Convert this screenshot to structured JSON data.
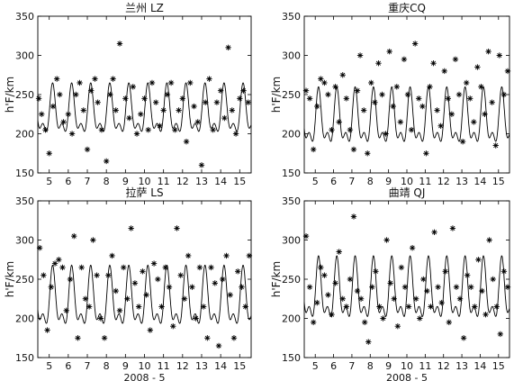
{
  "chart_data": [
    {
      "type": "line",
      "title": "兰州 LZ",
      "ylabel": "h'F/km",
      "xlabel": "",
      "xlim": [
        4.4,
        15.6
      ],
      "ylim": [
        150,
        350
      ],
      "xticks": [
        5,
        6,
        7,
        8,
        9,
        10,
        11,
        12,
        13,
        14,
        15
      ],
      "yticks": [
        150,
        200,
        250,
        300,
        350
      ],
      "series": [
        {
          "style": "line",
          "shape": "diurnal",
          "base": 225,
          "amp": 40,
          "min": 180,
          "max": 265
        },
        {
          "style": "markers",
          "x": [
            4.45,
            4.6,
            4.8,
            5.0,
            5.2,
            5.4,
            5.55,
            5.75,
            6.0,
            6.2,
            6.4,
            6.6,
            6.8,
            7.0,
            7.2,
            7.4,
            7.55,
            7.75,
            8.0,
            8.2,
            8.35,
            8.5,
            8.7,
            9.0,
            9.2,
            9.4,
            9.6,
            9.8,
            10.0,
            10.2,
            10.4,
            10.6,
            10.8,
            11.0,
            11.2,
            11.4,
            11.6,
            11.8,
            12.0,
            12.2,
            12.4,
            12.6,
            12.8,
            13.0,
            13.2,
            13.4,
            13.6,
            13.8,
            14.0,
            14.2,
            14.4,
            14.6,
            14.8,
            15.0,
            15.2,
            15.45
          ],
          "y": [
            245,
            225,
            205,
            175,
            235,
            270,
            250,
            215,
            225,
            200,
            250,
            265,
            230,
            180,
            255,
            270,
            240,
            205,
            165,
            250,
            270,
            230,
            315,
            245,
            220,
            260,
            200,
            225,
            245,
            205,
            265,
            240,
            210,
            230,
            250,
            265,
            205,
            230,
            245,
            190,
            265,
            235,
            215,
            160,
            240,
            270,
            205,
            240,
            255,
            220,
            310,
            230,
            200,
            245,
            255,
            240
          ]
        }
      ]
    },
    {
      "type": "line",
      "title": "重庆CQ",
      "ylabel": "h'F/km",
      "xlabel": "",
      "xlim": [
        4.4,
        15.6
      ],
      "ylim": [
        150,
        350
      ],
      "xticks": [
        5,
        6,
        7,
        8,
        9,
        10,
        11,
        12,
        13,
        14,
        15
      ],
      "yticks": [
        150,
        200,
        250,
        300,
        350
      ],
      "series": [
        {
          "style": "line",
          "shape": "diurnal",
          "base": 215,
          "amp": 45,
          "min": 165,
          "max": 265
        },
        {
          "style": "markers",
          "x": [
            4.5,
            4.7,
            4.9,
            5.1,
            5.3,
            5.5,
            5.7,
            5.9,
            6.1,
            6.3,
            6.5,
            6.7,
            6.9,
            7.1,
            7.3,
            7.45,
            7.65,
            7.85,
            8.05,
            8.25,
            8.45,
            8.65,
            8.85,
            9.05,
            9.25,
            9.45,
            9.65,
            9.85,
            10.05,
            10.25,
            10.45,
            10.65,
            10.85,
            11.05,
            11.25,
            11.45,
            11.65,
            11.85,
            12.05,
            12.25,
            12.45,
            12.65,
            12.85,
            13.05,
            13.25,
            13.45,
            13.65,
            13.85,
            14.05,
            14.25,
            14.45,
            14.65,
            14.85,
            15.05,
            15.3,
            15.5
          ],
          "y": [
            255,
            245,
            180,
            235,
            270,
            265,
            250,
            205,
            260,
            215,
            275,
            245,
            205,
            180,
            255,
            300,
            230,
            175,
            265,
            240,
            290,
            250,
            200,
            305,
            235,
            260,
            215,
            295,
            250,
            205,
            315,
            245,
            235,
            175,
            260,
            290,
            230,
            210,
            280,
            245,
            225,
            295,
            250,
            190,
            265,
            245,
            215,
            285,
            260,
            225,
            305,
            240,
            185,
            300,
            250,
            280
          ]
        }
      ]
    },
    {
      "type": "line",
      "title": "拉萨 LS",
      "ylabel": "h'F/km",
      "xlabel": "2008 - 5",
      "xlim": [
        4.4,
        15.6
      ],
      "ylim": [
        150,
        350
      ],
      "xticks": [
        5,
        6,
        7,
        8,
        9,
        10,
        11,
        12,
        13,
        14,
        15
      ],
      "yticks": [
        150,
        200,
        250,
        300,
        350
      ],
      "series": [
        {
          "style": "line",
          "shape": "diurnal",
          "base": 220,
          "amp": 48,
          "min": 170,
          "max": 270
        },
        {
          "style": "markers",
          "x": [
            4.5,
            4.7,
            4.9,
            5.1,
            5.3,
            5.5,
            5.7,
            5.9,
            6.1,
            6.3,
            6.5,
            6.7,
            6.9,
            7.1,
            7.3,
            7.5,
            7.7,
            7.9,
            8.1,
            8.3,
            8.5,
            8.7,
            8.9,
            9.1,
            9.3,
            9.5,
            9.7,
            9.9,
            10.1,
            10.3,
            10.5,
            10.7,
            10.9,
            11.1,
            11.3,
            11.5,
            11.7,
            11.9,
            12.1,
            12.3,
            12.5,
            12.7,
            12.9,
            13.1,
            13.3,
            13.5,
            13.7,
            13.9,
            14.1,
            14.3,
            14.5,
            14.7,
            14.9,
            15.1,
            15.3,
            15.5
          ],
          "y": [
            290,
            255,
            185,
            240,
            270,
            275,
            265,
            210,
            250,
            305,
            175,
            265,
            225,
            215,
            300,
            255,
            200,
            175,
            255,
            280,
            235,
            210,
            265,
            225,
            315,
            245,
            215,
            260,
            230,
            185,
            270,
            250,
            215,
            265,
            240,
            190,
            315,
            255,
            225,
            280,
            240,
            200,
            265,
            215,
            175,
            265,
            245,
            165,
            250,
            280,
            230,
            175,
            260,
            240,
            215,
            280
          ]
        }
      ]
    },
    {
      "type": "line",
      "title": "曲靖 QJ",
      "ylabel": "h'F/km",
      "xlabel": "2008 - 5",
      "xlim": [
        4.4,
        15.6
      ],
      "ylim": [
        150,
        350
      ],
      "xticks": [
        5,
        6,
        7,
        8,
        9,
        10,
        11,
        12,
        13,
        14,
        15
      ],
      "yticks": [
        150,
        200,
        250,
        300,
        350
      ],
      "series": [
        {
          "style": "line",
          "shape": "diurnal",
          "base": 230,
          "amp": 50,
          "min": 180,
          "max": 285
        },
        {
          "style": "markers",
          "x": [
            4.5,
            4.7,
            4.9,
            5.1,
            5.3,
            5.5,
            5.7,
            5.9,
            6.1,
            6.3,
            6.5,
            6.7,
            6.9,
            7.1,
            7.3,
            7.5,
            7.7,
            7.9,
            8.1,
            8.3,
            8.5,
            8.7,
            8.9,
            9.1,
            9.3,
            9.5,
            9.7,
            9.9,
            10.1,
            10.3,
            10.5,
            10.7,
            10.9,
            11.1,
            11.3,
            11.5,
            11.7,
            11.9,
            12.1,
            12.3,
            12.5,
            12.7,
            12.9,
            13.1,
            13.3,
            13.5,
            13.7,
            13.9,
            14.1,
            14.3,
            14.5,
            14.7,
            14.9,
            15.1,
            15.3,
            15.5
          ],
          "y": [
            305,
            240,
            195,
            220,
            265,
            255,
            230,
            205,
            245,
            285,
            225,
            215,
            250,
            330,
            235,
            225,
            195,
            170,
            240,
            260,
            215,
            200,
            300,
            245,
            225,
            190,
            265,
            240,
            215,
            290,
            225,
            200,
            250,
            235,
            215,
            310,
            240,
            220,
            260,
            195,
            315,
            240,
            225,
            175,
            255,
            240,
            215,
            275,
            235,
            205,
            300,
            250,
            215,
            180,
            260,
            240
          ]
        }
      ]
    }
  ]
}
